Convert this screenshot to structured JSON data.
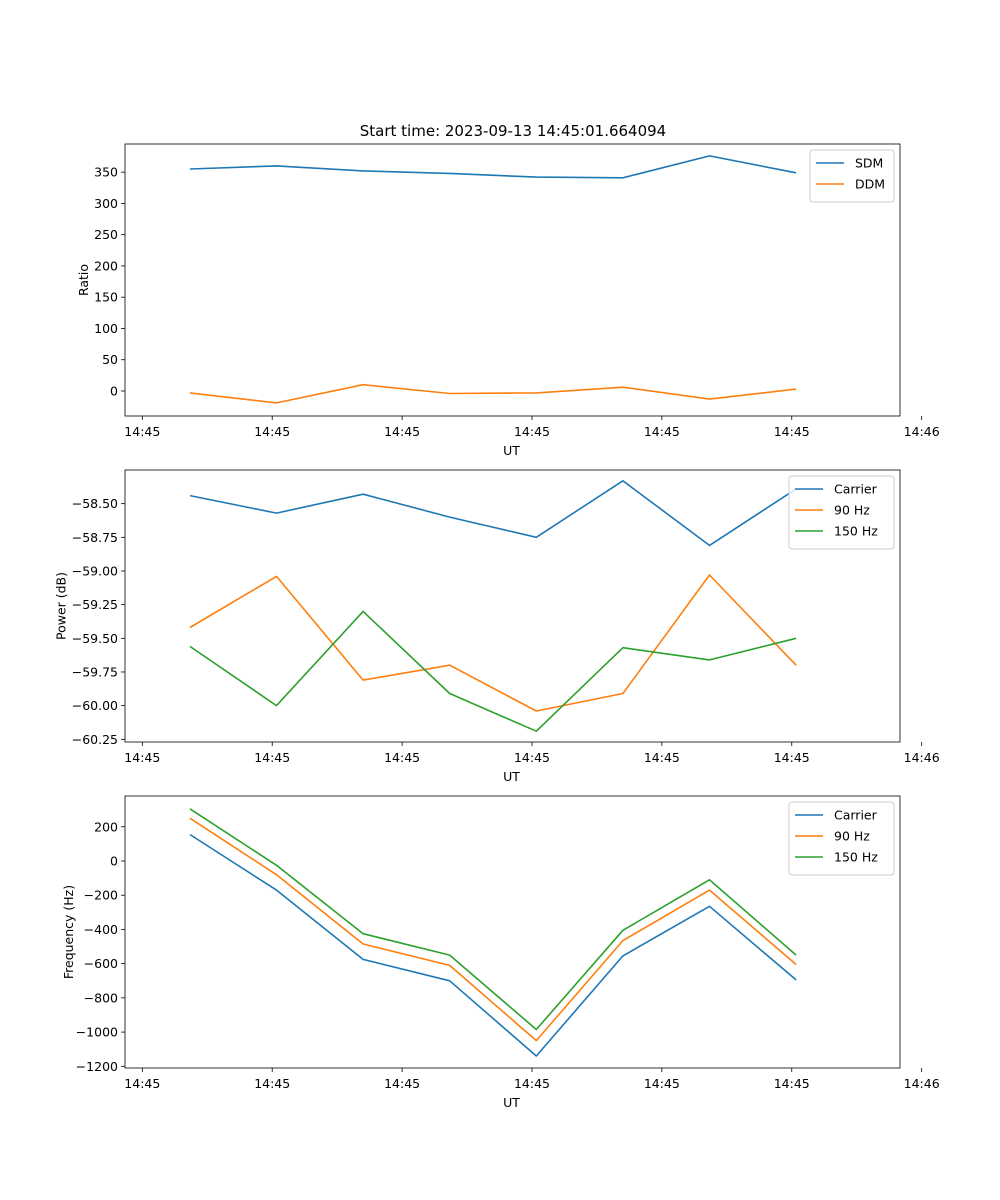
{
  "figure": {
    "title": "Start time: 2023-09-13 14:45:01.664094"
  },
  "chart_data": [
    {
      "type": "line",
      "ylabel": "Ratio",
      "xlabel": "UT",
      "x": [
        1,
        2,
        3,
        4,
        5,
        6,
        7,
        8
      ],
      "xlim": [
        0.25,
        9.2
      ],
      "xticks": [
        0.45,
        1.95,
        3.45,
        4.95,
        6.45,
        7.95,
        9.45
      ],
      "xticklabels": [
        "14:45",
        "14:45",
        "14:45",
        "14:45",
        "14:45",
        "14:45",
        "14:46"
      ],
      "ylim": [
        -40,
        395
      ],
      "yticks": [
        0,
        50,
        100,
        150,
        200,
        250,
        300,
        350
      ],
      "yticklabels": [
        "0",
        "50",
        "100",
        "150",
        "200",
        "250",
        "300",
        "350"
      ],
      "legend": "top-right",
      "series": [
        {
          "name": "SDM",
          "color": "#1f77b4",
          "values": [
            355,
            360,
            352,
            348,
            342,
            341,
            376,
            349
          ]
        },
        {
          "name": "DDM",
          "color": "#ff7f0e",
          "values": [
            -3,
            -19,
            10,
            -4,
            -3,
            6,
            -13,
            3
          ]
        }
      ]
    },
    {
      "type": "line",
      "ylabel": "Power (dB)",
      "xlabel": "UT",
      "x": [
        1,
        2,
        3,
        4,
        5,
        6,
        7,
        8
      ],
      "xlim": [
        0.25,
        9.2
      ],
      "xticks": [
        0.45,
        1.95,
        3.45,
        4.95,
        6.45,
        7.95,
        9.45
      ],
      "xticklabels": [
        "14:45",
        "14:45",
        "14:45",
        "14:45",
        "14:45",
        "14:45",
        "14:46"
      ],
      "ylim": [
        -60.27,
        -58.25
      ],
      "yticks": [
        -60.25,
        -60.0,
        -59.75,
        -59.5,
        -59.25,
        -59.0,
        -58.75,
        -58.5
      ],
      "yticklabels": [
        "−60.25",
        "−60.00",
        "−59.75",
        "−59.50",
        "−59.25",
        "−59.00",
        "−58.75",
        "−58.50"
      ],
      "legend": "top-right",
      "series": [
        {
          "name": "Carrier",
          "color": "#1f77b4",
          "values": [
            -58.44,
            -58.57,
            -58.43,
            -58.6,
            -58.75,
            -58.33,
            -58.81,
            -58.39
          ]
        },
        {
          "name": "90 Hz",
          "color": "#ff7f0e",
          "values": [
            -59.42,
            -59.04,
            -59.81,
            -59.7,
            -60.04,
            -59.91,
            -59.03,
            -59.7
          ]
        },
        {
          "name": "150 Hz",
          "color": "#2ca02c",
          "values": [
            -59.56,
            -60.0,
            -59.3,
            -59.91,
            -60.19,
            -59.57,
            -59.66,
            -59.5
          ]
        }
      ]
    },
    {
      "type": "line",
      "ylabel": "Frequency (Hz)",
      "xlabel": "UT",
      "x": [
        1,
        2,
        3,
        4,
        5,
        6,
        7,
        8
      ],
      "xlim": [
        0.25,
        9.2
      ],
      "xticks": [
        0.45,
        1.95,
        3.45,
        4.95,
        6.45,
        7.95,
        9.45
      ],
      "xticklabels": [
        "14:45",
        "14:45",
        "14:45",
        "14:45",
        "14:45",
        "14:45",
        "14:46"
      ],
      "ylim": [
        -1210,
        380
      ],
      "yticks": [
        -1200,
        -1000,
        -800,
        -600,
        -400,
        -200,
        0,
        200
      ],
      "yticklabels": [
        "−1200",
        "−1000",
        "−800",
        "−600",
        "−400",
        "−200",
        "0",
        "200"
      ],
      "legend": "top-right",
      "series": [
        {
          "name": "Carrier",
          "color": "#1f77b4",
          "values": [
            155,
            -170,
            -575,
            -700,
            -1140,
            -555,
            -265,
            -695
          ]
        },
        {
          "name": "90 Hz",
          "color": "#ff7f0e",
          "values": [
            250,
            -80,
            -485,
            -610,
            -1050,
            -465,
            -170,
            -605
          ]
        },
        {
          "name": "150 Hz",
          "color": "#2ca02c",
          "values": [
            305,
            -25,
            -425,
            -550,
            -985,
            -405,
            -110,
            -550
          ]
        }
      ]
    }
  ]
}
